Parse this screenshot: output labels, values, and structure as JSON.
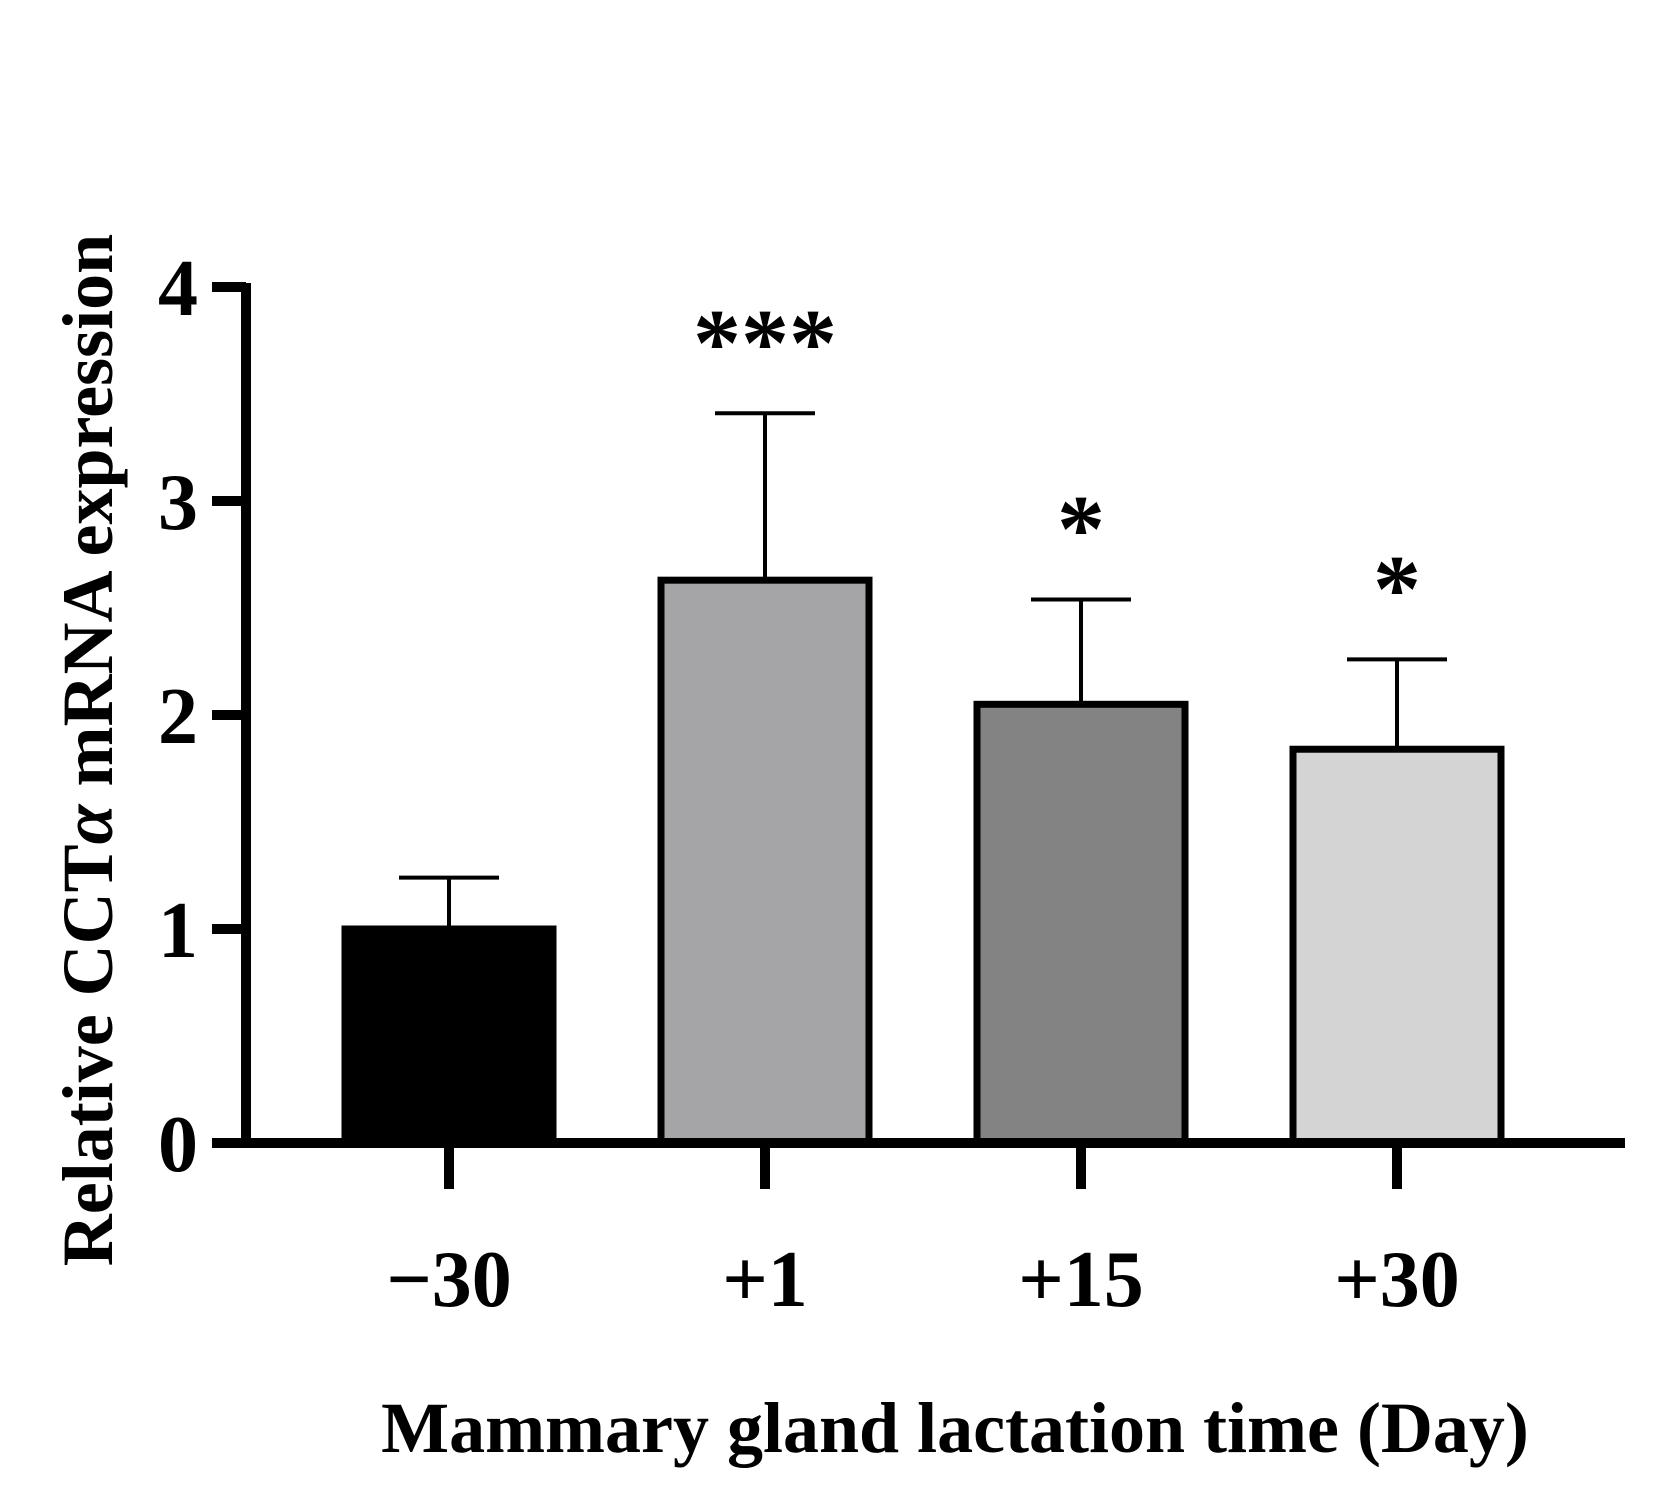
{
  "chart_data": {
    "type": "bar",
    "title": "",
    "xlabel": "Mammary gland lactation time (Day)",
    "ylabel_parts": [
      "Relative CCT",
      "α",
      " mRNA expression"
    ],
    "categories": [
      "−30",
      "+1",
      "+15",
      "+30"
    ],
    "values": [
      1.0,
      2.63,
      2.05,
      1.84
    ],
    "errors": [
      0.24,
      0.78,
      0.49,
      0.42
    ],
    "significance": [
      "",
      "***",
      "*",
      "*"
    ],
    "bar_colors": [
      "#000000",
      "#a5a5a8",
      "#838383",
      "#d4d4d4"
    ],
    "ylim": [
      0,
      4
    ],
    "yticks": [
      "0",
      "1",
      "2",
      "3",
      "4"
    ],
    "grid": false,
    "legend": false
  }
}
